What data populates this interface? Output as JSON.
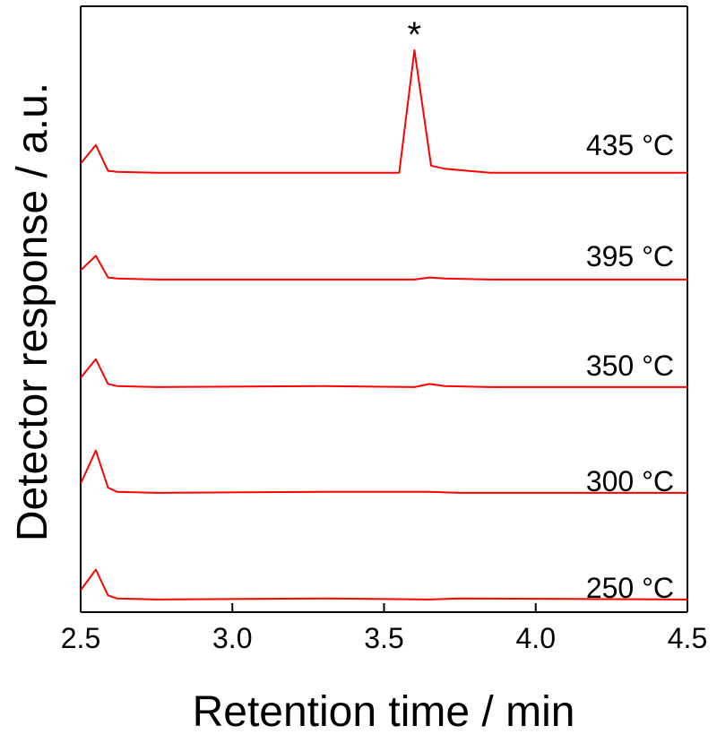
{
  "chart_data": {
    "type": "line",
    "xlabel": "Retention time / min",
    "ylabel": "Detector response / a.u.",
    "xlim": [
      2.5,
      4.5
    ],
    "x_ticks": [
      "2.5",
      "3.0",
      "3.5",
      "4.0",
      "4.5"
    ],
    "grid": false,
    "legend": "none",
    "line_color": "#ff0000",
    "series": [
      {
        "name": "250 °C",
        "x": [
          2.5,
          2.55,
          2.59,
          2.62,
          2.75,
          3.3,
          3.65,
          3.75,
          4.5
        ],
        "y": [
          0.1,
          0.3,
          0.05,
          0.02,
          0.01,
          0.02,
          0.01,
          0.02,
          0.01
        ]
      },
      {
        "name": "300 °C",
        "x": [
          2.5,
          2.55,
          2.59,
          2.62,
          2.75,
          3.3,
          3.65,
          3.75,
          4.5
        ],
        "y": [
          0.1,
          0.42,
          0.06,
          0.02,
          0.01,
          0.02,
          0.02,
          0.01,
          0.01
        ]
      },
      {
        "name": "350 °C",
        "x": [
          2.5,
          2.55,
          2.59,
          2.62,
          2.75,
          3.3,
          3.6,
          3.65,
          3.7,
          3.85,
          4.5
        ],
        "y": [
          0.1,
          0.28,
          0.04,
          0.02,
          0.01,
          0.02,
          0.01,
          0.04,
          0.02,
          0.01,
          0.01
        ]
      },
      {
        "name": "395 °C",
        "x": [
          2.5,
          2.55,
          2.59,
          2.62,
          2.75,
          3.3,
          3.6,
          3.65,
          3.7,
          3.85,
          4.5
        ],
        "y": [
          0.1,
          0.24,
          0.03,
          0.02,
          0.01,
          0.01,
          0.01,
          0.03,
          0.02,
          0.01,
          0.01
        ]
      },
      {
        "name": "435 °C",
        "x": [
          2.5,
          2.55,
          2.59,
          2.62,
          2.75,
          3.3,
          3.55,
          3.6,
          3.655,
          3.7,
          3.85,
          4.5
        ],
        "y": [
          0.1,
          0.28,
          0.03,
          0.02,
          0.01,
          0.01,
          0.01,
          1.2,
          0.08,
          0.05,
          0.01,
          0.01
        ]
      }
    ],
    "annotations": [
      {
        "text": "*",
        "x": 3.6
      }
    ]
  }
}
